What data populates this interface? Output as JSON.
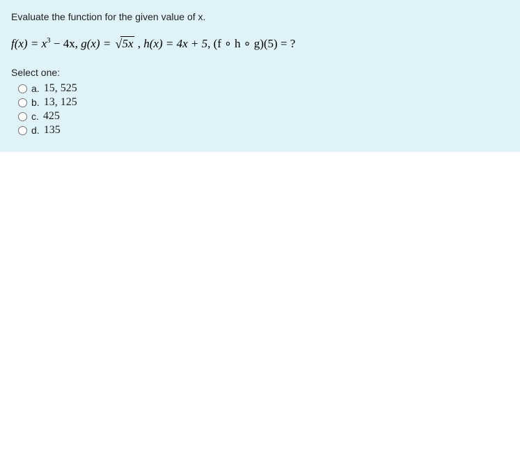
{
  "background_color": "#def2f8",
  "page_bg": "#ffffff",
  "text_color": "#1f1f1f",
  "math_color": "#000000",
  "prompt": "Evaluate the function for the given value of x.",
  "equation_parts": {
    "f": "f(x) = x",
    "f_exp": "3",
    "f_tail": " − 4x,   ",
    "g": "g(x) = ",
    "g_rad": "5x",
    "g_tail": " ,   ",
    "h": "h(x) = 4x + 5,   ",
    "comp": "(f ∘ h ∘ g)(5) =  ?"
  },
  "select_label": "Select one:",
  "options": [
    {
      "letter": "a.",
      "value": "15, 525"
    },
    {
      "letter": "b.",
      "value": "13, 125"
    },
    {
      "letter": "c.",
      "value": "425"
    },
    {
      "letter": "d.",
      "value": "135"
    }
  ]
}
